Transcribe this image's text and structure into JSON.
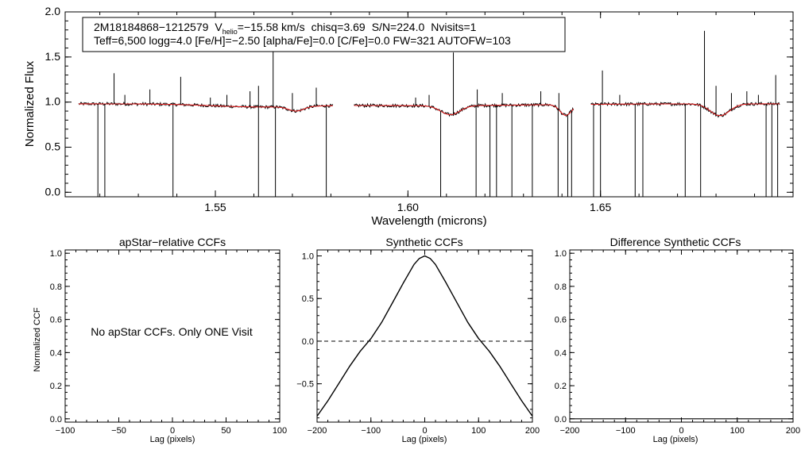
{
  "chart_data": [
    {
      "type": "line",
      "title": "",
      "xlabel": "Wavelength (microns)",
      "ylabel": "Normalized Flux",
      "xlim": [
        1.511,
        1.7
      ],
      "ylim": [
        -0.05,
        2.0
      ],
      "xticks": [
        1.55,
        1.6,
        1.65
      ],
      "xtick_labels": [
        "1.55",
        "1.60",
        "1.65"
      ],
      "yticks": [
        0.0,
        0.5,
        1.0,
        1.5,
        2.0
      ],
      "ytick_labels": [
        "0.0",
        "0.5",
        "1.0",
        "1.5",
        "2.0"
      ],
      "info": {
        "star_id": "2M18184868−1212579",
        "vhelio_sym": "V",
        "vhelio_sub": "helio",
        "vhelio_value": "=−15.58 km/s",
        "chisq": "chisq=3.69",
        "snr": "S/N=224.0",
        "nvisits": "Nvisits=1",
        "params": "Teff=6,500 logg=4.0 [Fe/H]=−2.50 [alpha/Fe]=0.0 [C/Fe]=0.0 FW=321 AUTOFW=103"
      },
      "chips": [
        [
          1.5145,
          1.5805
        ],
        [
          1.586,
          1.643
        ],
        [
          1.6475,
          1.6965
        ]
      ],
      "series": [
        {
          "name": "observed spectrum",
          "color": "#000000",
          "continuum": 0.98,
          "absorption": [
            [
              1.561,
              0.012,
              0.03
            ],
            [
              1.571,
              0.002,
              0.05
            ],
            [
              1.605,
              0.025,
              0.02
            ],
            [
              1.611,
              0.0025,
              0.1
            ],
            [
              1.641,
              0.0015,
              0.12
            ],
            [
              1.681,
              0.0025,
              0.13
            ]
          ],
          "spikes_up": [
            [
              1.5237,
              1.32
            ],
            [
              1.5265,
              1.08
            ],
            [
              1.533,
              1.14
            ],
            [
              1.541,
              1.28
            ],
            [
              1.5487,
              1.05
            ],
            [
              1.553,
              1.08
            ],
            [
              1.559,
              1.12
            ],
            [
              1.5612,
              1.18
            ],
            [
              1.565,
              1.88
            ],
            [
              1.57,
              1.1
            ],
            [
              1.5762,
              1.16
            ],
            [
              1.602,
              1.05
            ],
            [
              1.6055,
              1.08
            ],
            [
              1.6118,
              1.55
            ],
            [
              1.618,
              1.14
            ],
            [
              1.6245,
              1.1
            ],
            [
              1.6345,
              1.12
            ],
            [
              1.6392,
              1.1
            ],
            [
              1.6505,
              1.35
            ],
            [
              1.655,
              1.08
            ],
            [
              1.677,
              1.79
            ],
            [
              1.68,
              1.18
            ],
            [
              1.684,
              1.1
            ],
            [
              1.688,
              1.12
            ],
            [
              1.691,
              1.08
            ],
            [
              1.6955,
              1.3
            ]
          ],
          "spikes_down": [
            [
              1.5195,
              -0.05
            ],
            [
              1.5213,
              -0.05
            ],
            [
              1.539,
              -0.05
            ],
            [
              1.5612,
              -0.05
            ],
            [
              1.5656,
              -0.05
            ],
            [
              1.5788,
              -0.05
            ],
            [
              1.6085,
              -0.05
            ],
            [
              1.6177,
              -0.05
            ],
            [
              1.6213,
              -0.05
            ],
            [
              1.623,
              -0.05
            ],
            [
              1.627,
              -0.05
            ],
            [
              1.6323,
              -0.05
            ],
            [
              1.639,
              -0.05
            ],
            [
              1.6415,
              -0.05
            ],
            [
              1.6425,
              -0.05
            ],
            [
              1.6482,
              -0.05
            ],
            [
              1.65,
              -0.05
            ],
            [
              1.659,
              -0.05
            ],
            [
              1.661,
              -0.05
            ],
            [
              1.672,
              -0.05
            ],
            [
              1.676,
              -0.05
            ],
            [
              1.693,
              -0.05
            ],
            [
              1.6945,
              -0.05
            ],
            [
              1.696,
              -0.05
            ]
          ]
        },
        {
          "name": "synthetic fit",
          "color": "#e02020",
          "continuum": 0.98,
          "absorption": [
            [
              1.561,
              0.012,
              0.03
            ],
            [
              1.571,
              0.002,
              0.05
            ],
            [
              1.605,
              0.025,
              0.02
            ],
            [
              1.611,
              0.0025,
              0.1
            ],
            [
              1.641,
              0.0015,
              0.12
            ],
            [
              1.681,
              0.0025,
              0.13
            ]
          ]
        }
      ]
    },
    {
      "type": "line",
      "title": "apStar−relative CCFs",
      "xlabel": "Lag (pixels)",
      "ylabel": "Normalized CCF",
      "xlim": [
        -100,
        100
      ],
      "ylim": [
        -0.02,
        1.02
      ],
      "xticks": [
        -100,
        -50,
        0,
        50,
        100
      ],
      "xtick_labels": [
        "−100",
        "−50",
        "0",
        "50",
        "100"
      ],
      "yticks": [
        0.0,
        0.2,
        0.4,
        0.6,
        0.8,
        1.0
      ],
      "ytick_labels": [
        "0.0",
        "0.2",
        "0.4",
        "0.6",
        "0.8",
        "1.0"
      ],
      "annotation": "No apStar CCFs.  Only ONE Visit",
      "series": []
    },
    {
      "type": "line",
      "title": "Synthetic CCFs",
      "xlabel": "Lag (pixels)",
      "ylabel": "",
      "xlim": [
        -200,
        200
      ],
      "ylim": [
        -0.95,
        1.07
      ],
      "xticks": [
        -200,
        -100,
        0,
        100,
        200
      ],
      "xtick_labels": [
        "−200",
        "−100",
        "0",
        "100",
        "200"
      ],
      "yticks": [
        -0.5,
        0.0,
        0.5,
        1.0
      ],
      "ytick_labels": [
        "−0.5",
        "0.0",
        "0.5",
        "1.0"
      ],
      "reference_line": {
        "y": 0.0,
        "style": "dashed"
      },
      "series": [
        {
          "name": "synthetic CCF",
          "color": "#000000",
          "x": [
            -200,
            -180,
            -160,
            -140,
            -120,
            -100,
            -80,
            -60,
            -40,
            -20,
            -10,
            0,
            10,
            20,
            40,
            60,
            80,
            100,
            120,
            140,
            160,
            180,
            200
          ],
          "y": [
            -0.88,
            -0.7,
            -0.5,
            -0.3,
            -0.12,
            0.03,
            0.22,
            0.45,
            0.68,
            0.9,
            0.97,
            1.0,
            0.97,
            0.9,
            0.68,
            0.45,
            0.22,
            0.03,
            -0.12,
            -0.3,
            -0.5,
            -0.7,
            -0.88
          ]
        }
      ]
    },
    {
      "type": "line",
      "title": "Difference Synthetic CCFs",
      "xlabel": "Lag (pixels)",
      "ylabel": "",
      "xlim": [
        -200,
        200
      ],
      "ylim": [
        -0.02,
        1.02
      ],
      "xticks": [
        -200,
        -100,
        0,
        100,
        200
      ],
      "xtick_labels": [
        "−200",
        "−100",
        "0",
        "100",
        "200"
      ],
      "yticks": [
        0.0,
        0.2,
        0.4,
        0.6,
        0.8,
        1.0
      ],
      "ytick_labels": [
        "0.0",
        "0.2",
        "0.4",
        "0.6",
        "0.8",
        "1.0"
      ],
      "series": [
        {
          "name": "difference CCF",
          "color": "#000000",
          "x": [
            -200,
            -100,
            0,
            100,
            200
          ],
          "y": [
            0.0,
            0.0,
            0.0,
            0.0,
            0.0
          ]
        }
      ]
    }
  ]
}
